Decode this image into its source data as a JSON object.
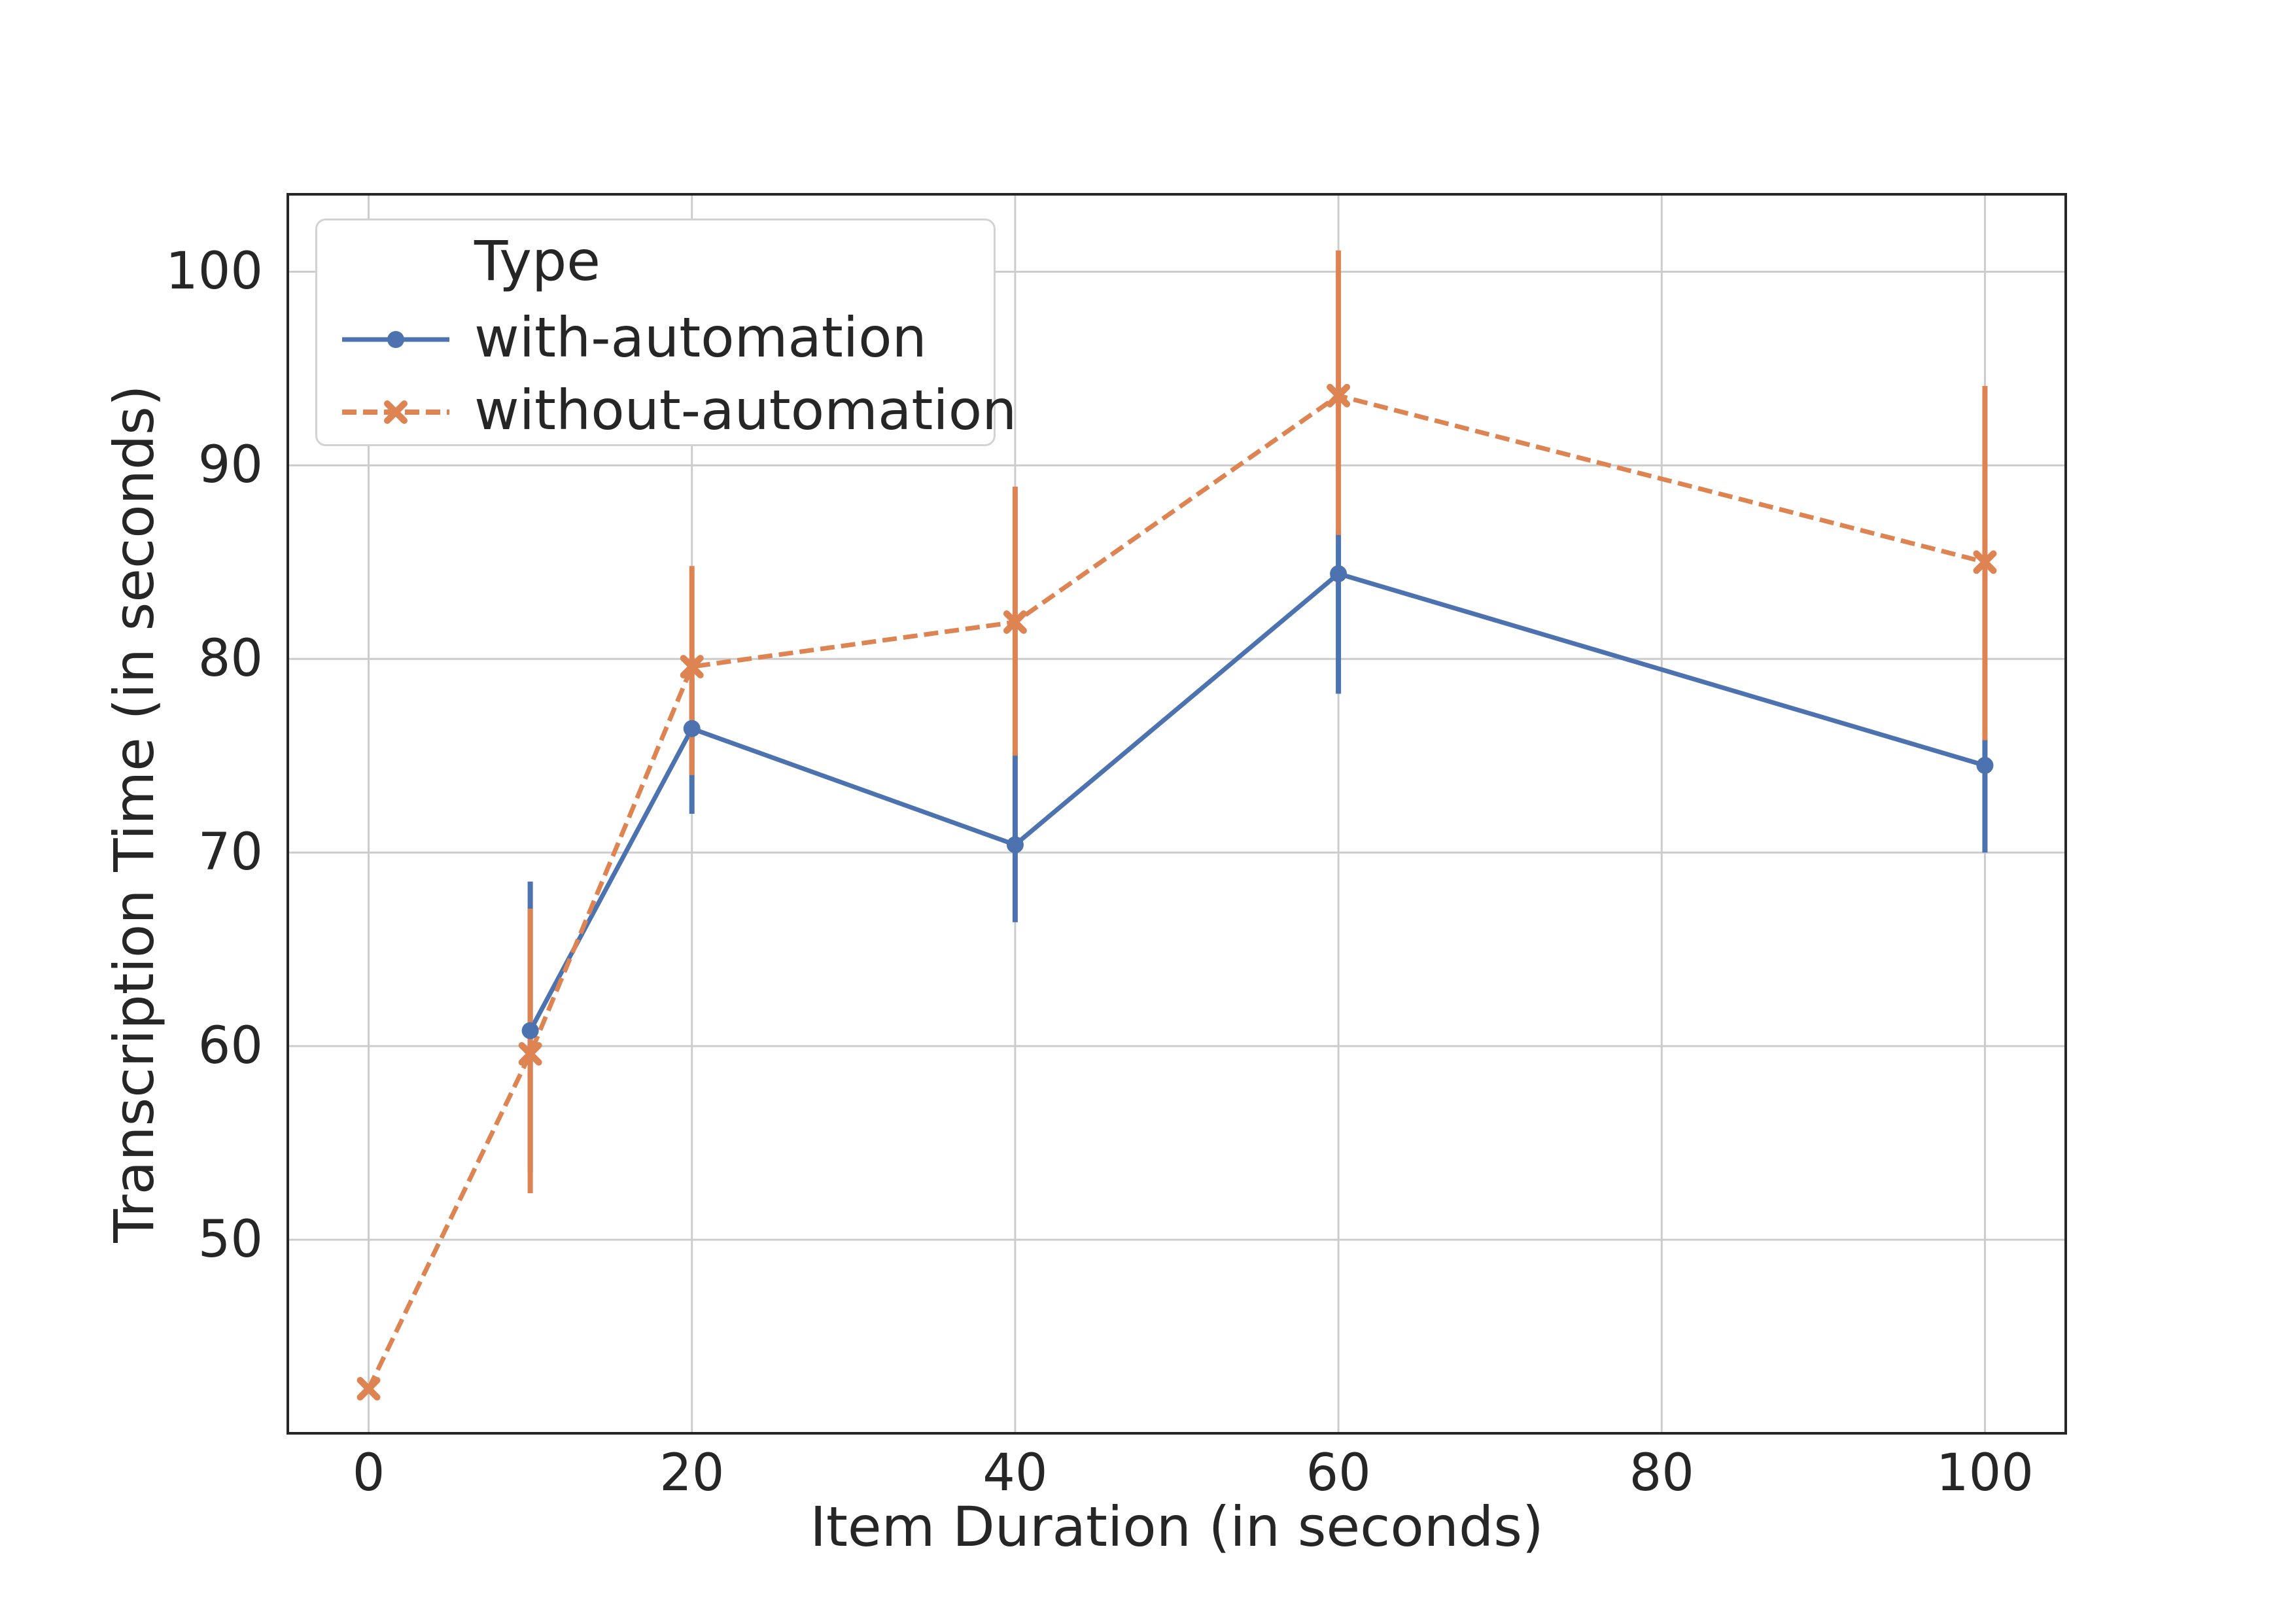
{
  "figure": {
    "background": "#ffffff"
  },
  "chart_data": {
    "type": "line",
    "title": "",
    "xlabel": "Item Duration (in seconds)",
    "ylabel": "Transcription Time (in seconds)",
    "xlim": [
      -5,
      105
    ],
    "ylim": [
      40,
      104
    ],
    "xticks": [
      0,
      20,
      40,
      60,
      80,
      100
    ],
    "yticks": [
      50,
      60,
      70,
      80,
      90,
      100
    ],
    "grid": true,
    "grid_color": "#cccccc",
    "spine_color": "#262626",
    "text_color": "#262626",
    "legend": {
      "title": "Type",
      "position": "upper-left"
    },
    "series": [
      {
        "name": "with-automation",
        "color": "#4C72B0",
        "line_style": "solid",
        "marker": "circle",
        "x": [
          10,
          20,
          40,
          60,
          100
        ],
        "y": [
          60.8,
          76.4,
          70.4,
          84.4,
          74.5
        ],
        "err_lo": [
          53.5,
          72.0,
          66.4,
          78.2,
          70.0
        ],
        "err_hi": [
          68.5,
          79.0,
          75.2,
          86.6,
          75.9
        ]
      },
      {
        "name": "without-automation",
        "color": "#DD8452",
        "line_style": "dashed",
        "marker": "x",
        "x": [
          0,
          10,
          20,
          40,
          60,
          100
        ],
        "y": [
          42.3,
          59.6,
          79.6,
          81.9,
          93.6,
          85.0
        ],
        "err_lo": [
          42.3,
          52.4,
          74.0,
          75.0,
          86.4,
          75.8
        ],
        "err_hi": [
          42.3,
          67.1,
          84.8,
          88.9,
          101.1,
          94.1
        ]
      }
    ]
  }
}
